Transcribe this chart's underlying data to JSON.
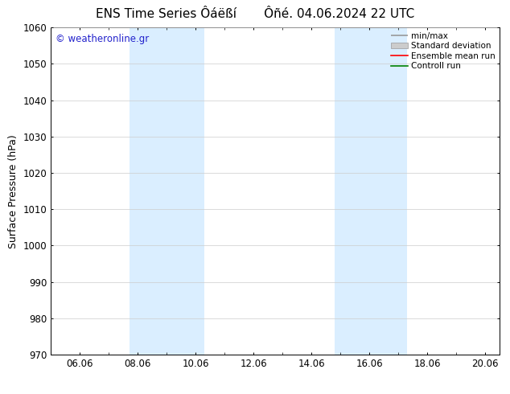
{
  "title": "ENS Time Series Ôáëßí       Ôñé. 04.06.2024 22 UTC",
  "ylabel": "Surface Pressure (hPa)",
  "ylim": [
    970,
    1060
  ],
  "yticks": [
    970,
    980,
    990,
    1000,
    1010,
    1020,
    1030,
    1040,
    1050,
    1060
  ],
  "xlim": [
    5.0,
    20.5
  ],
  "xtick_positions": [
    6,
    8,
    10,
    12,
    14,
    16,
    18,
    20
  ],
  "xtick_labels": [
    "06.06",
    "08.06",
    "10.06",
    "12.06",
    "14.06",
    "16.06",
    "18.06",
    "20.06"
  ],
  "xminor_positions": [
    5,
    7,
    9,
    11,
    13,
    15,
    17,
    19
  ],
  "shaded_regions": [
    {
      "xmin": 7.7,
      "xmax": 10.3,
      "color": "#daeeff"
    },
    {
      "xmin": 14.8,
      "xmax": 17.3,
      "color": "#daeeff"
    }
  ],
  "legend_labels": [
    "min/max",
    "Standard deviation",
    "Ensemble mean run",
    "Controll run"
  ],
  "watermark": "© weatheronline.gr",
  "watermark_color": "#2222cc",
  "bg_color": "#ffffff",
  "title_fontsize": 11,
  "axis_label_fontsize": 9,
  "tick_fontsize": 8.5
}
